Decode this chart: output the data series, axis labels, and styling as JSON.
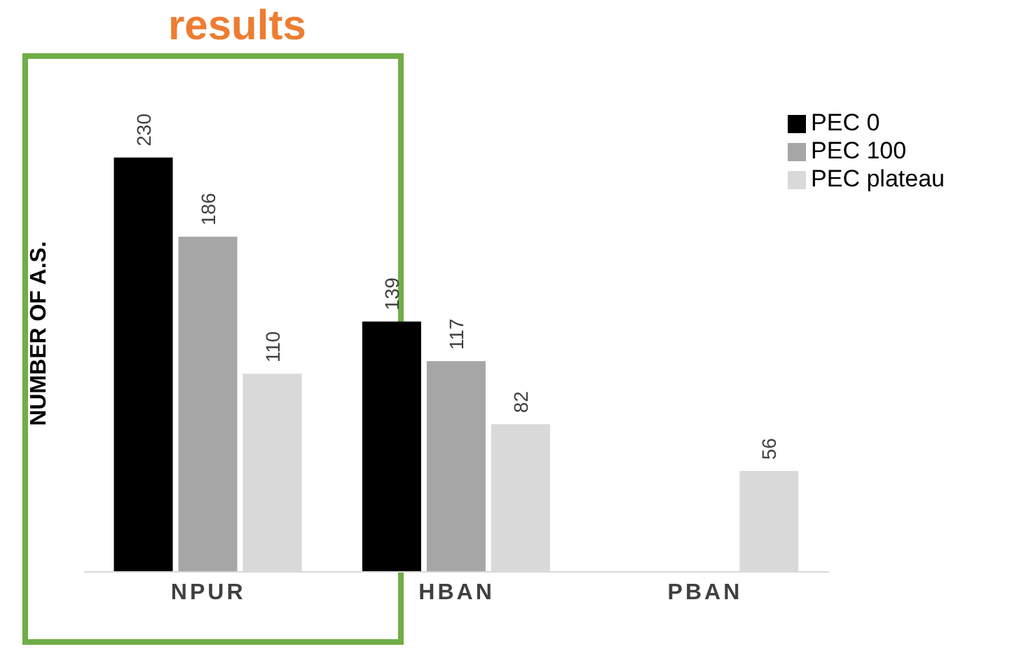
{
  "chart_data": {
    "type": "bar",
    "title": "results",
    "ylabel": "NUMBER OF A.S.",
    "categories": [
      "NPUR",
      "HBAN",
      "PBAN"
    ],
    "series": [
      {
        "name": "PEC 0",
        "color": "#000000",
        "values": [
          230,
          139,
          null
        ]
      },
      {
        "name": "PEC 100",
        "color": "#a6a6a6",
        "values": [
          186,
          117,
          null
        ]
      },
      {
        "name": "PEC plateau",
        "color": "#d9d9d9",
        "values": [
          110,
          82,
          56
        ]
      }
    ],
    "data_labels": true,
    "legend": "top right"
  }
}
